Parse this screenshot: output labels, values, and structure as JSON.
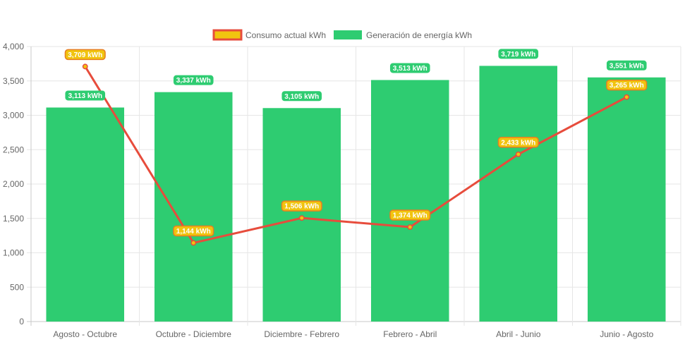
{
  "chart_data": {
    "type": "bar",
    "title": "",
    "xlabel": "",
    "ylabel": "",
    "ylim": [
      0,
      4000
    ],
    "y_ticks": [
      0,
      500,
      1000,
      1500,
      2000,
      2500,
      3000,
      3500,
      4000
    ],
    "y_tick_labels": [
      "0",
      "500",
      "1,000",
      "1,500",
      "2,000",
      "2,500",
      "3,000",
      "3,500",
      "4,000"
    ],
    "grid": true,
    "legend_position": "top-center",
    "categories": [
      "Agosto - Octubre",
      "Octubre - Diciembre",
      "Diciembre - Febrero",
      "Febrero - Abril",
      "Abril - Junio",
      "Junio - Agosto"
    ],
    "series": [
      {
        "name": "Consumo actual kWh",
        "type": "line",
        "values": [
          3709,
          1144,
          1506,
          1374,
          2433,
          3265
        ],
        "labels": [
          "3,709 kWh",
          "1,144 kWh",
          "1,506 kWh",
          "1,374 kWh",
          "2,433 kWh",
          "3,265 kWh"
        ],
        "line_color": "#e74c3c",
        "fill_color": "#f1c40f"
      },
      {
        "name": "Generación de energía kWh",
        "type": "bar",
        "values": [
          3113,
          3337,
          3105,
          3513,
          3719,
          3551
        ],
        "labels": [
          "3,113 kWh",
          "3,337 kWh",
          "3,105 kWh",
          "3,513 kWh",
          "3,719 kWh",
          "3,551 kWh"
        ],
        "color": "#2ecc71"
      }
    ]
  }
}
